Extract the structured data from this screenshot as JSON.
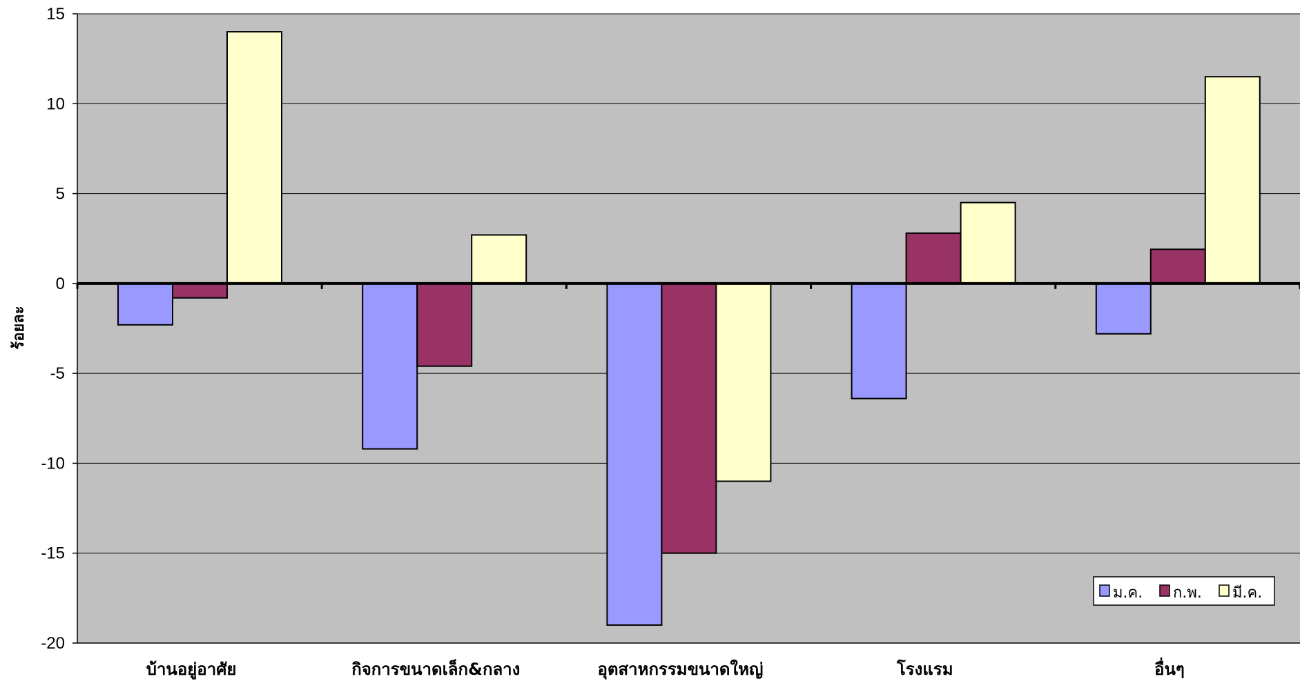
{
  "chart_data": {
    "type": "bar",
    "categories": [
      "บ้านอยู่อาศัย",
      "กิจการขนาดเล็ก&กลาง",
      "อุตสาหกรรมขนาดใหญ่",
      "โรงแรม",
      "อื่นๆ"
    ],
    "series": [
      {
        "name": "ม.ค.",
        "values": [
          -2.3,
          -9.2,
          -19.0,
          -6.4,
          -2.8
        ]
      },
      {
        "name": "ก.พ.",
        "values": [
          -0.8,
          -4.6,
          -15.0,
          2.8,
          1.9
        ]
      },
      {
        "name": "มี.ค.",
        "values": [
          14.0,
          2.7,
          -11.0,
          4.5,
          11.5
        ]
      }
    ],
    "ylabel": "ร้อยละ",
    "ylim": [
      -20,
      15
    ],
    "yticks": [
      15,
      10,
      5,
      0,
      -5,
      -10,
      -15,
      -20
    ],
    "grid": true,
    "legend_position": "bottom-right",
    "colors": {
      "plot_background": "#c0c0c0",
      "series": [
        "#9999ff",
        "#993366",
        "#ffffcc"
      ],
      "bar_edge": "#000000",
      "gridline": "#000000"
    }
  }
}
